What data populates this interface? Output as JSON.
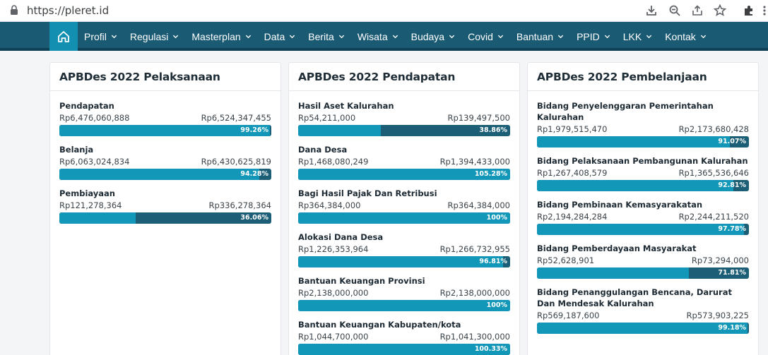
{
  "browser": {
    "url": "https://pleret.id",
    "icons": [
      "lock-icon",
      "download-icon",
      "zoom-icon",
      "share-icon",
      "star-icon",
      "extensions-icon",
      "menu-icon"
    ]
  },
  "nav": {
    "home_icon": "home-icon",
    "items": [
      "Profil",
      "Regulasi",
      "Masterplan",
      "Data",
      "Berita",
      "Wisata",
      "Budaya",
      "Covid",
      "Bantuan",
      "PPID",
      "LKK",
      "Kontak"
    ]
  },
  "colors": {
    "navbar": "#1a5a73",
    "bar_track": "#1b5e76",
    "bar_fill": "#1397b8"
  },
  "cards": [
    {
      "title": "APBDes 2022 Pelaksanaan",
      "items": [
        {
          "name": "Pendapatan",
          "realisasi": "Rp6,476,060,888",
          "anggaran": "Rp6,524,347,455",
          "percent_label": "99.26%",
          "percent": 99.26
        },
        {
          "name": "Belanja",
          "realisasi": "Rp6,063,024,834",
          "anggaran": "Rp6,430,625,819",
          "percent_label": "94.28%",
          "percent": 94.28
        },
        {
          "name": "Pembiayaan",
          "realisasi": "Rp121,278,364",
          "anggaran": "Rp336,278,364",
          "percent_label": "36.06%",
          "percent": 36.06
        }
      ]
    },
    {
      "title": "APBDes 2022 Pendapatan",
      "items": [
        {
          "name": "Hasil Aset Kalurahan",
          "realisasi": "Rp54,211,000",
          "anggaran": "Rp139,497,500",
          "percent_label": "38.86%",
          "percent": 38.86
        },
        {
          "name": "Dana Desa",
          "realisasi": "Rp1,468,080,249",
          "anggaran": "Rp1,394,433,000",
          "percent_label": "105.28%",
          "percent": 100
        },
        {
          "name": "Bagi Hasil Pajak Dan Retribusi",
          "realisasi": "Rp364,384,000",
          "anggaran": "Rp364,384,000",
          "percent_label": "100%",
          "percent": 100
        },
        {
          "name": "Alokasi Dana Desa",
          "realisasi": "Rp1,226,353,964",
          "anggaran": "Rp1,266,732,955",
          "percent_label": "96.81%",
          "percent": 96.81
        },
        {
          "name": "Bantuan Keuangan Provinsi",
          "realisasi": "Rp2,138,000,000",
          "anggaran": "Rp2,138,000,000",
          "percent_label": "100%",
          "percent": 100
        },
        {
          "name": "Bantuan Keuangan Kabupaten/kota",
          "realisasi": "Rp1,044,700,000",
          "anggaran": "Rp1,041,300,000",
          "percent_label": "100.33%",
          "percent": 100
        }
      ]
    },
    {
      "title": "APBDes 2022 Pembelanjaan",
      "items": [
        {
          "name": "Bidang Penyelenggaran Pemerintahan Kalurahan",
          "realisasi": "Rp1,979,515,470",
          "anggaran": "Rp2,173,680,428",
          "percent_label": "91.07%",
          "percent": 91.07
        },
        {
          "name": "Bidang Pelaksanaan Pembangunan Kalurahan",
          "realisasi": "Rp1,267,408,579",
          "anggaran": "Rp1,365,536,646",
          "percent_label": "92.81%",
          "percent": 92.81
        },
        {
          "name": "Bidang Pembinaan Kemasyarakatan",
          "realisasi": "Rp2,194,284,284",
          "anggaran": "Rp2,244,211,520",
          "percent_label": "97.78%",
          "percent": 97.78
        },
        {
          "name": "Bidang Pemberdayaan Masyarakat",
          "realisasi": "Rp52,628,901",
          "anggaran": "Rp73,294,000",
          "percent_label": "71.81%",
          "percent": 71.81
        },
        {
          "name": "Bidang Penanggulangan Bencana, Darurat Dan Mendesak Kalurahan",
          "realisasi": "Rp569,187,600",
          "anggaran": "Rp573,903,225",
          "percent_label": "99.18%",
          "percent": 99.18
        }
      ]
    }
  ]
}
